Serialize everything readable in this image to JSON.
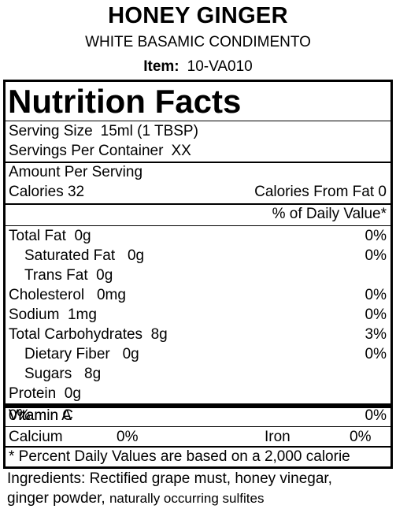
{
  "header": {
    "product_name": "HONEY GINGER",
    "subtitle": "WHITE BASAMIC CONDIMENTO",
    "item_label": "Item:",
    "item_code": "10-VA010"
  },
  "panel": {
    "title": "Nutrition Facts",
    "serving_size_label": "Serving Size",
    "serving_size_value": "15ml (1 TBSP)",
    "servings_label": "Servings Per Container",
    "servings_value": "XX",
    "amount_per_serving": "Amount Per Serving",
    "calories_label": "Calories",
    "calories_value": "32",
    "calories_fat_label": "Calories From Fat",
    "calories_fat_value": "0",
    "daily_value_header": "% of Daily Value*",
    "nutrients": [
      {
        "label": "Total Fat",
        "amount": "0g",
        "dv": "0%"
      },
      {
        "label": "Saturated Fat",
        "amount": "0g",
        "dv": "0%"
      },
      {
        "label": "Trans Fat",
        "amount": "0g",
        "dv": ""
      },
      {
        "label": "Cholesterol",
        "amount": "0mg",
        "dv": "0%"
      },
      {
        "label": "Sodium",
        "amount": "1mg",
        "dv": "0%"
      },
      {
        "label": "Total Carbohydrates",
        "amount": "8g",
        "dv": "3%"
      },
      {
        "label": "Dietary Fiber",
        "amount": "0g",
        "dv": "0%"
      },
      {
        "label": "Sugars",
        "amount": "8g",
        "dv": ""
      },
      {
        "label": "Protein",
        "amount": "0g",
        "dv": ""
      }
    ],
    "vitamins": {
      "vitamin_a_label": "Vitamin A",
      "vitamin_a_value": "0%",
      "vitamin_c_label": "Vitamin C",
      "vitamin_c_value": "0%",
      "calcium_label": "Calcium",
      "calcium_value": "0%",
      "iron_label": "Iron",
      "iron_value": "0%"
    },
    "footnote": "* Percent Daily Values are based on a 2,000 calorie"
  },
  "ingredients": {
    "line1": "Ingredients: Rectified grape must, honey vinegar,",
    "line2_a": "ginger powder,",
    "line2_b": "naturally occurring sulfites"
  }
}
